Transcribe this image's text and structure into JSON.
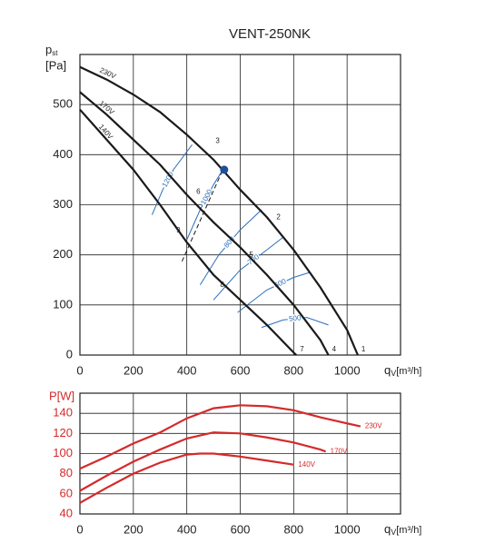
{
  "chart_data": [
    {
      "type": "line",
      "title": "VENT-250NK",
      "y_label": "p",
      "y_label_sub": "st",
      "y_label_unit": "[Pa]",
      "x_label": "q",
      "x_label_sub": "V",
      "x_label_unit": "[m³/h]",
      "label_color": "#222222",
      "tick_label_color": "#222222",
      "xlim": [
        0,
        1200
      ],
      "xticks": [
        0,
        200,
        400,
        600,
        800,
        1000
      ],
      "ylim": [
        0,
        600
      ],
      "yticks": [
        0,
        100,
        200,
        300,
        400,
        500
      ],
      "grid": true,
      "series": [
        {
          "name": "230V",
          "color": "#1a1a1a",
          "x": [
            0,
            100,
            200,
            300,
            400,
            500,
            600,
            700,
            800,
            900,
            1000,
            1040
          ],
          "values": [
            575,
            550,
            520,
            485,
            440,
            390,
            330,
            275,
            210,
            135,
            50,
            0
          ]
        },
        {
          "name": "170V",
          "color": "#1a1a1a",
          "x": [
            0,
            100,
            200,
            300,
            400,
            500,
            600,
            700,
            800,
            900,
            930
          ],
          "values": [
            525,
            480,
            430,
            380,
            320,
            265,
            215,
            160,
            100,
            30,
            0
          ]
        },
        {
          "name": "140V",
          "color": "#1a1a1a",
          "x": [
            0,
            100,
            200,
            300,
            400,
            500,
            600,
            700,
            800,
            810
          ],
          "values": [
            490,
            430,
            370,
            300,
            225,
            160,
            110,
            60,
            5,
            0
          ]
        }
      ],
      "rpm_lines": [
        {
          "name": "1200",
          "color": "#2a6ebb",
          "x": [
            270,
            310,
            350,
            420
          ],
          "values": [
            280,
            330,
            370,
            420
          ]
        },
        {
          "name": "1000",
          "color": "#2a6ebb",
          "x": [
            400,
            450,
            500,
            535
          ],
          "values": [
            230,
            290,
            340,
            370
          ]
        },
        {
          "name": "800",
          "color": "#2a6ebb",
          "x": [
            450,
            520,
            600,
            680
          ],
          "values": [
            140,
            200,
            250,
            290
          ]
        },
        {
          "name": "700",
          "color": "#2a6ebb",
          "x": [
            500,
            600,
            700,
            760
          ],
          "values": [
            110,
            170,
            210,
            235
          ]
        },
        {
          "name": "600",
          "color": "#2a6ebb",
          "x": [
            590,
            700,
            800,
            860
          ],
          "values": [
            85,
            130,
            155,
            165
          ]
        },
        {
          "name": "500",
          "color": "#2a6ebb",
          "x": [
            680,
            760,
            850,
            930
          ],
          "values": [
            55,
            70,
            75,
            60
          ]
        }
      ],
      "system_line": {
        "color": "#1a1a1a",
        "x": [
          382,
          535
        ],
        "values": [
          187,
          370
        ]
      },
      "point": {
        "color": "#1f4e9c",
        "x": 540,
        "y": 370
      },
      "annotations": [
        {
          "text": "1",
          "x": 1040,
          "y": 0
        },
        {
          "text": "2",
          "x": 722,
          "y": 264
        },
        {
          "text": "3",
          "x": 494,
          "y": 416
        },
        {
          "text": "4",
          "x": 930,
          "y": 0
        },
        {
          "text": "5",
          "x": 620,
          "y": 189
        },
        {
          "text": "6",
          "x": 422,
          "y": 315
        },
        {
          "text": "7",
          "x": 810,
          "y": 0
        },
        {
          "text": "8",
          "x": 511,
          "y": 129
        },
        {
          "text": "9",
          "x": 347,
          "y": 238
        }
      ]
    },
    {
      "type": "line",
      "y_label": "P[W]",
      "x_label": "q",
      "x_label_sub": "V",
      "x_label_unit": "[m³/h]",
      "label_color": "#d42a2a",
      "tick_label_color": "#d42a2a",
      "xlim": [
        0,
        1200
      ],
      "xticks": [
        0,
        200,
        400,
        600,
        800,
        1000
      ],
      "ylim": [
        40,
        160
      ],
      "yticks": [
        40,
        60,
        80,
        100,
        120,
        140
      ],
      "grid": true,
      "series": [
        {
          "name": "230V",
          "color": "#d42a2a",
          "x": [
            0,
            100,
            200,
            300,
            400,
            500,
            600,
            700,
            800,
            900,
            1000,
            1050
          ],
          "values": [
            85,
            97,
            110,
            121,
            135,
            145,
            148,
            147,
            143,
            136,
            130,
            127
          ]
        },
        {
          "name": "170V",
          "color": "#d42a2a",
          "x": [
            0,
            100,
            200,
            300,
            400,
            500,
            600,
            700,
            800,
            900,
            920
          ],
          "values": [
            63,
            78,
            92,
            104,
            115,
            121,
            120,
            116,
            111,
            104,
            102
          ]
        },
        {
          "name": "140V",
          "color": "#d42a2a",
          "x": [
            0,
            100,
            200,
            300,
            400,
            450,
            500,
            600,
            700,
            800
          ],
          "values": [
            51,
            66,
            80,
            91,
            99,
            100,
            100,
            97,
            93,
            89
          ]
        }
      ]
    }
  ]
}
